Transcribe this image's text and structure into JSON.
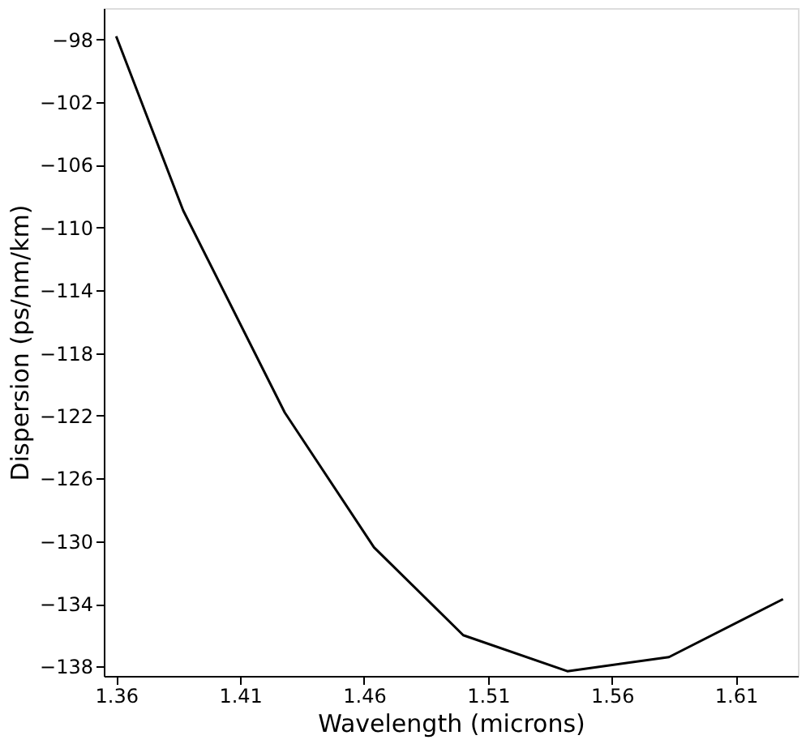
{
  "chart_data": {
    "type": "line",
    "xlabel": "Wavelength  (microns)",
    "ylabel": "Dispersion  (ps/nm/km)",
    "x": [
      1.36,
      1.387,
      1.428,
      1.464,
      1.5,
      1.542,
      1.583,
      1.629
    ],
    "series": [
      {
        "color": "#000000",
        "values": [
          -97.8,
          -108.9,
          -121.8,
          -130.4,
          -136,
          -138.3,
          -137.4,
          -133.7
        ]
      }
    ],
    "xlim": [
      1.355,
      1.635
    ],
    "ylim": [
      -138.6,
      -96
    ],
    "xticks": [
      1.36,
      1.41,
      1.46,
      1.51,
      1.56,
      1.61
    ],
    "yticks": [
      -98,
      -102,
      -106,
      -110,
      -114,
      -118,
      -122,
      -126,
      -130,
      -134,
      -138
    ],
    "grid": false,
    "marker": "none",
    "line_style": "solid"
  }
}
